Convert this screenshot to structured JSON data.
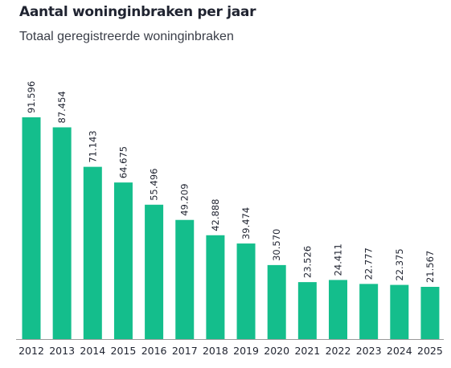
{
  "chart_data": {
    "type": "bar",
    "title": "Aantal woninginbraken per jaar",
    "subtitle": "Totaal geregistreerde woninginbraken",
    "categories": [
      "2012",
      "2013",
      "2014",
      "2015",
      "2016",
      "2017",
      "2018",
      "2019",
      "2020",
      "2021",
      "2022",
      "2023",
      "2024",
      "2025"
    ],
    "values": [
      91596,
      87454,
      71143,
      64675,
      55496,
      49209,
      42888,
      39474,
      30570,
      23526,
      24411,
      22777,
      22375,
      21567
    ],
    "value_labels": [
      "91.596",
      "87.454",
      "71.143",
      "64.675",
      "55.496",
      "49.209",
      "42.888",
      "39.474",
      "30.570",
      "23.526",
      "24.411",
      "22.777",
      "22.375",
      "21.567"
    ],
    "xlabel": "",
    "ylabel": "",
    "ylim": [
      0,
      91596
    ],
    "grid": false,
    "bar_color": "#14be8c",
    "axis_color": "#9a9a9a",
    "text_color": "#1f2330"
  }
}
